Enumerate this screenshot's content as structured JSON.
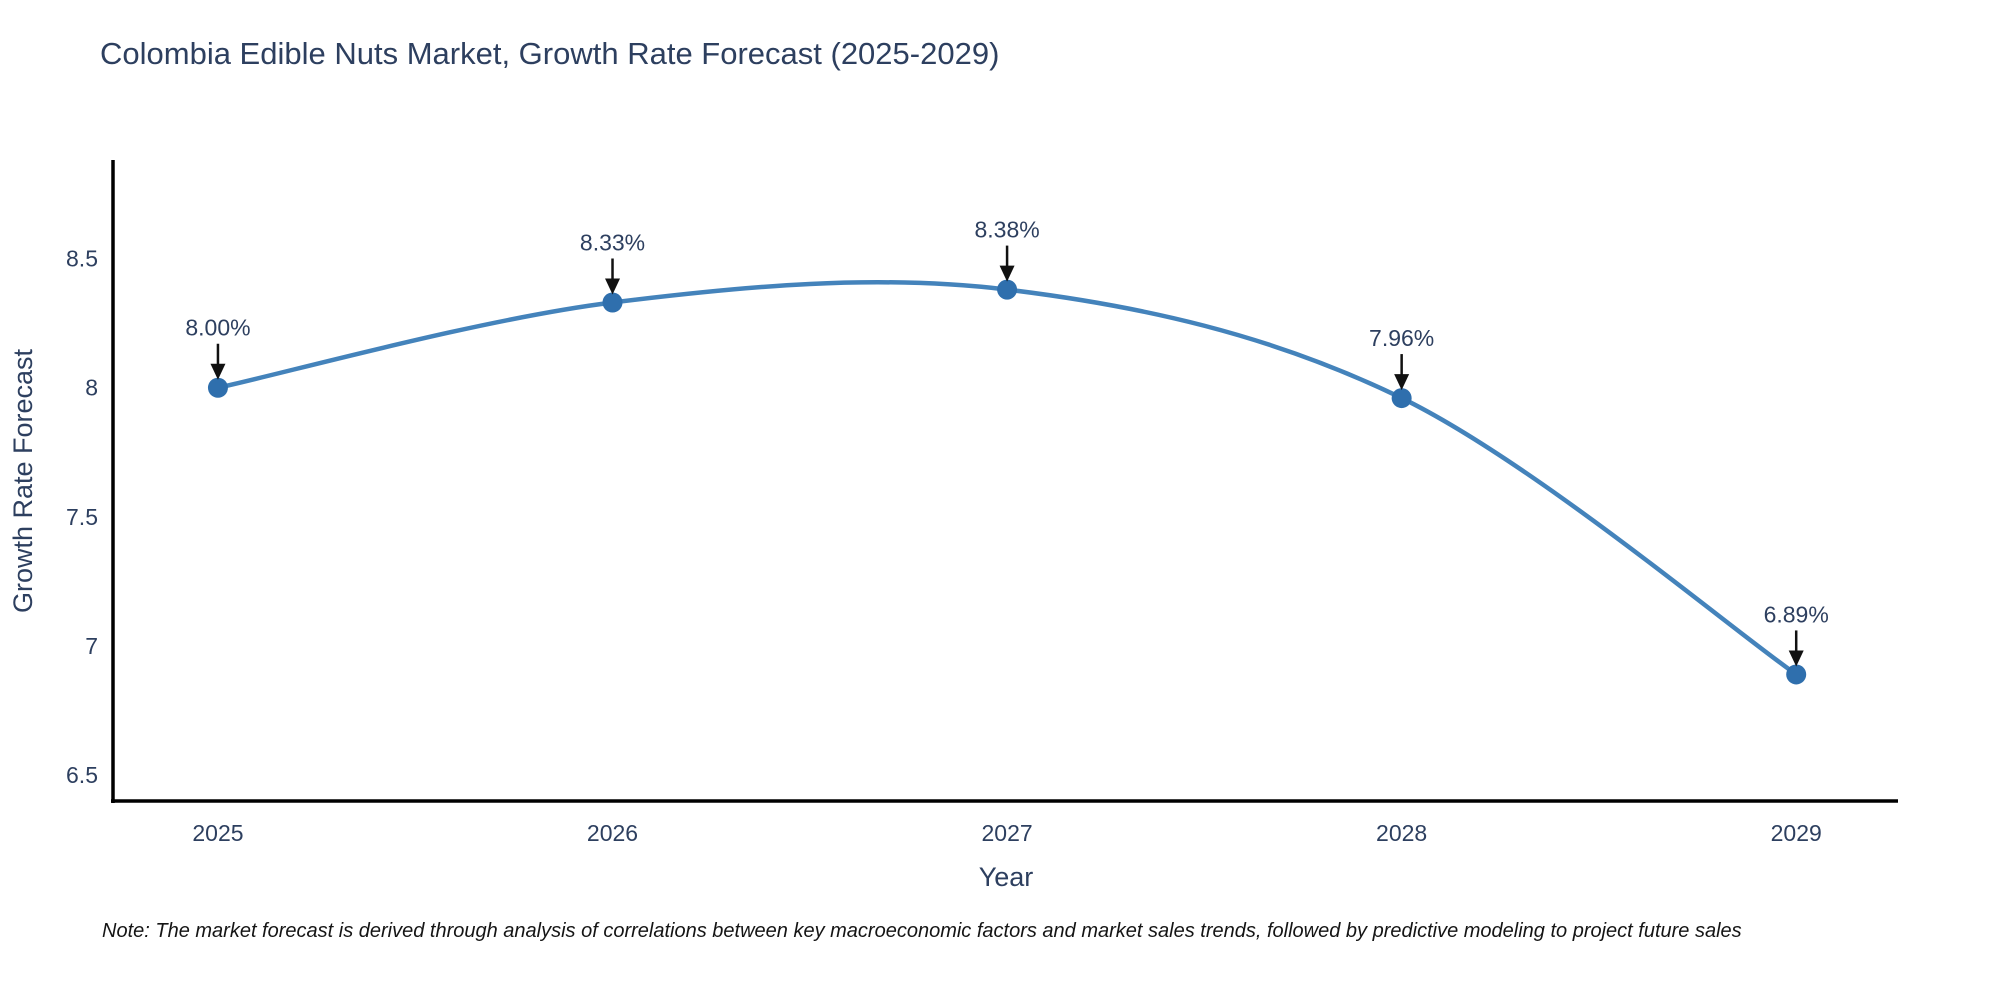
{
  "title": "Colombia Edible Nuts Market, Growth Rate Forecast (2025-2029)",
  "note": "Note: The market forecast is derived through analysis of correlations between key macroeconomic factors and market sales trends, followed by predictive modeling to project future sales",
  "colors": {
    "line": "#4483bb",
    "marker": "#2f6fad",
    "axis": "#000000",
    "text": "#2d3f5f",
    "arrow": "#111111"
  },
  "chart_data": {
    "type": "line",
    "title": "Colombia Edible Nuts Market, Growth Rate Forecast (2025-2029)",
    "xlabel": "Year",
    "ylabel": "Growth Rate Forecast",
    "x": [
      2025,
      2026,
      2027,
      2028,
      2029
    ],
    "values": [
      8.0,
      8.33,
      8.38,
      7.96,
      6.89
    ],
    "point_labels": [
      "8.00%",
      "8.33%",
      "8.38%",
      "7.96%",
      "6.89%"
    ],
    "xticks": [
      "2025",
      "2026",
      "2027",
      "2028",
      "2029"
    ],
    "yticks": [
      6.5,
      7,
      7.5,
      8,
      8.5
    ],
    "xlim": [
      2024.734,
      2029.258
    ],
    "ylim": [
      6.4,
      8.874
    ],
    "line_shape": "spline",
    "grid": false,
    "legend": false
  }
}
